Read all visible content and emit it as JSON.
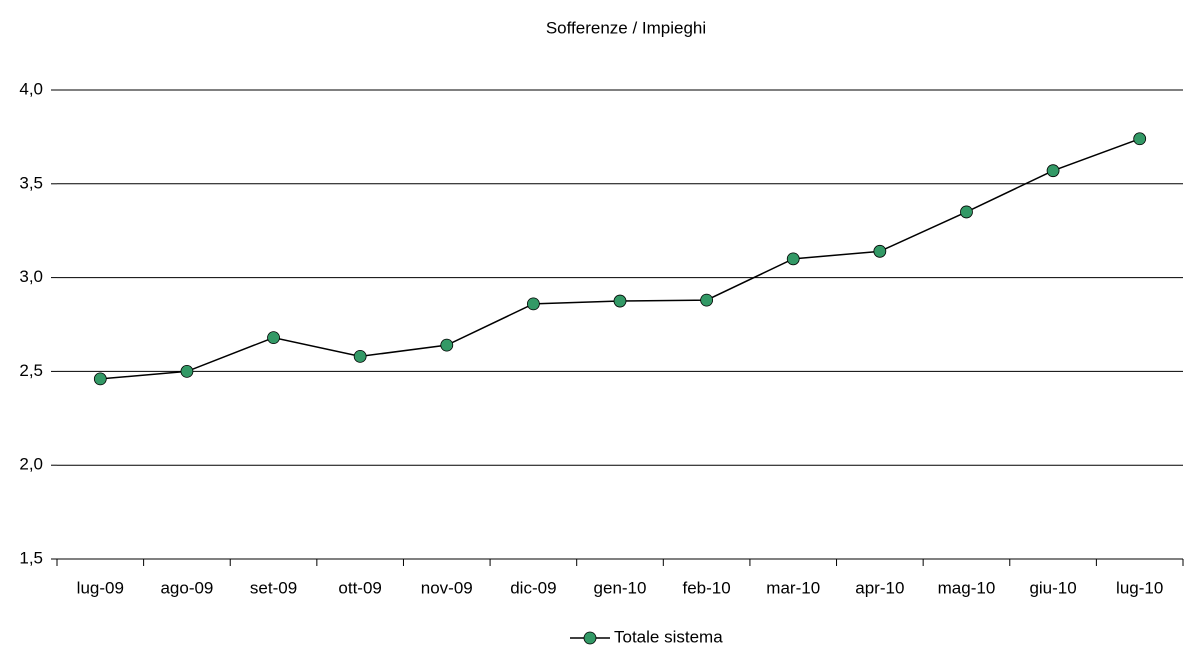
{
  "chart_data": {
    "type": "line",
    "title": "Sofferenze / Impieghi",
    "categories": [
      "lug-09",
      "ago-09",
      "set-09",
      "ott-09",
      "nov-09",
      "dic-09",
      "gen-10",
      "feb-10",
      "mar-10",
      "apr-10",
      "mag-10",
      "giu-10",
      "lug-10"
    ],
    "series": [
      {
        "name": "Totale sistema",
        "color": "#339966",
        "line_color": "#000000",
        "values": [
          2.46,
          2.5,
          2.68,
          2.58,
          2.64,
          2.86,
          2.875,
          2.88,
          3.1,
          3.14,
          3.35,
          3.57,
          3.74
        ]
      }
    ],
    "ylim": [
      1.5,
      4.0
    ],
    "yticks": [
      {
        "value": 1.5,
        "label": "1,5"
      },
      {
        "value": 2,
        "label": "2,0"
      },
      {
        "value": 2.5,
        "label": "2,5"
      },
      {
        "value": 3,
        "label": "3,0"
      },
      {
        "value": 3.5,
        "label": "3,5"
      },
      {
        "value": 4,
        "label": "4,0"
      }
    ],
    "grid": true,
    "legend": "bottom"
  }
}
